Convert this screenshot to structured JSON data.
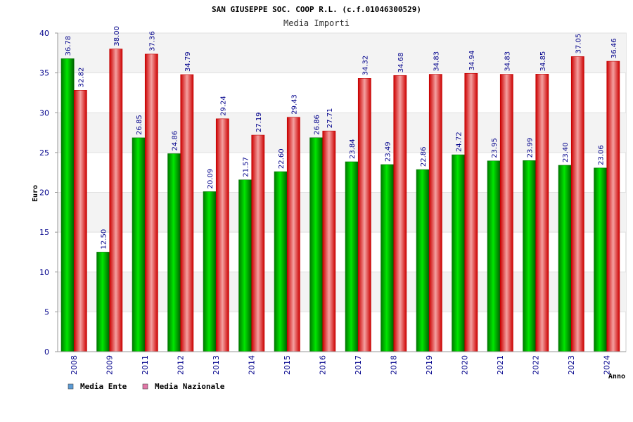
{
  "chart_data": {
    "type": "bar",
    "title": "SAN GIUSEPPE SOC. COOP R.L. (c.f.01046300529)",
    "subtitle": "Media Importi",
    "xlabel": "Anno",
    "ylabel": "Euro",
    "ylim": [
      0,
      40
    ],
    "yticks": [
      0,
      5,
      10,
      15,
      20,
      25,
      30,
      35,
      40
    ],
    "categories": [
      "2008",
      "2009",
      "2011",
      "2012",
      "2013",
      "2014",
      "2015",
      "2016",
      "2017",
      "2018",
      "2019",
      "2020",
      "2021",
      "2022",
      "2023",
      "2024"
    ],
    "series": [
      {
        "name": "Media Ente",
        "color": "#00cc00",
        "legend_color": "#5b9bd5",
        "values": [
          36.78,
          12.5,
          26.85,
          24.86,
          20.09,
          21.57,
          22.6,
          26.86,
          23.84,
          23.49,
          22.86,
          24.72,
          23.95,
          23.99,
          23.4,
          23.06
        ],
        "labels": [
          "36.78",
          "12.50",
          "26.85",
          "24.86",
          "20.09",
          "21.57",
          "22.60",
          "26.86",
          "23.84",
          "23.49",
          "22.86",
          "24.72",
          "23.95",
          "23.99",
          "23.40",
          "23.06"
        ]
      },
      {
        "name": "Media Nazionale",
        "color": "#ee1111",
        "legend_color": "#e377a8",
        "values": [
          32.82,
          38.0,
          37.36,
          34.79,
          29.24,
          27.19,
          29.43,
          27.71,
          34.32,
          34.68,
          34.83,
          34.94,
          34.83,
          34.85,
          37.05,
          36.46
        ],
        "labels": [
          "32.82",
          "38.00",
          "37.36",
          "34.79",
          "29.24",
          "27.19",
          "29.43",
          "27.71",
          "34.32",
          "34.68",
          "34.83",
          "34.94",
          "34.83",
          "34.85",
          "37.05",
          "36.46"
        ]
      }
    ],
    "legend_position": "bottom-left",
    "grid": true
  }
}
